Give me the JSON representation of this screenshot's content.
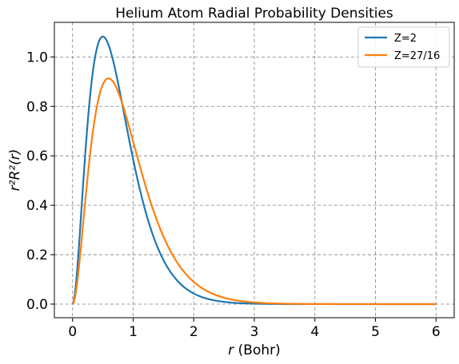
{
  "chart_data": {
    "type": "line",
    "title": "Helium Atom Radial Probability Densities",
    "xlabel_var": "r",
    "xlabel_unit": "(Bohr)",
    "ylabel": "r²R²(r)",
    "xlim": [
      -0.3,
      6.3
    ],
    "ylim": [
      -0.055,
      1.14
    ],
    "xticks": [
      0,
      1,
      2,
      3,
      4,
      5,
      6
    ],
    "yticks": [
      0.0,
      0.2,
      0.4,
      0.6,
      0.8,
      1.0
    ],
    "ytick_labels": [
      "0.0",
      "0.2",
      "0.4",
      "0.6",
      "0.8",
      "1.0"
    ],
    "grid": true,
    "legend_position": "top-right",
    "series": [
      {
        "name": "Z=2",
        "Z": 2,
        "color": "#1f77b4"
      },
      {
        "name": "Z=27/16",
        "Z": 1.6875,
        "color": "#ff7f0e"
      }
    ],
    "x_range": [
      0,
      6
    ],
    "n_points": 300
  }
}
